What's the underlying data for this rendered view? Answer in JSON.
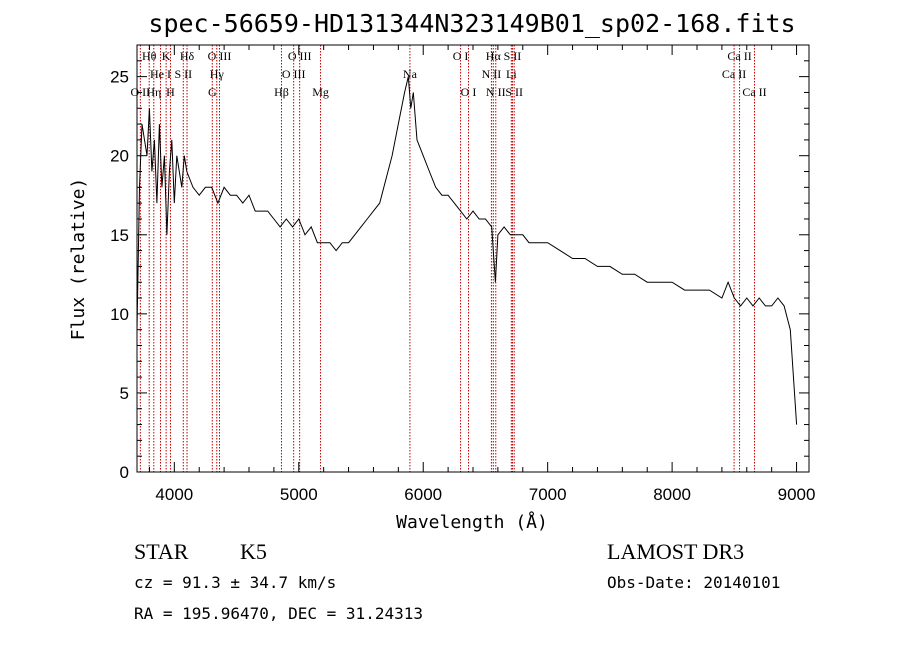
{
  "chart_data": {
    "type": "line",
    "title": "spec-56659-HD131344N323149B01_sp02-168.fits",
    "xlabel": "Wavelength (Å)",
    "ylabel": "Flux (relative)",
    "xlim": [
      3700,
      9100
    ],
    "ylim": [
      0,
      27
    ],
    "xticks": [
      4000,
      5000,
      6000,
      7000,
      8000,
      9000
    ],
    "yticks": [
      0,
      5,
      10,
      15,
      20,
      25
    ],
    "grid": false,
    "series": [
      {
        "color": "#000000",
        "x": [
          3700,
          3720,
          3740,
          3760,
          3780,
          3800,
          3820,
          3840,
          3860,
          3880,
          3900,
          3920,
          3940,
          3960,
          3980,
          4000,
          4020,
          4040,
          4060,
          4080,
          4100,
          4150,
          4200,
          4250,
          4300,
          4350,
          4400,
          4450,
          4500,
          4550,
          4600,
          4650,
          4700,
          4750,
          4800,
          4850,
          4900,
          4950,
          5000,
          5050,
          5100,
          5150,
          5200,
          5250,
          5300,
          5350,
          5400,
          5450,
          5500,
          5550,
          5600,
          5650,
          5700,
          5750,
          5800,
          5850,
          5880,
          5900,
          5920,
          5950,
          6000,
          6050,
          6100,
          6150,
          6200,
          6250,
          6300,
          6350,
          6400,
          6450,
          6500,
          6550,
          6580,
          6600,
          6650,
          6700,
          6750,
          6800,
          6850,
          6900,
          7000,
          7100,
          7200,
          7300,
          7400,
          7500,
          7600,
          7700,
          7800,
          7900,
          8000,
          8100,
          8200,
          8300,
          8400,
          8450,
          8500,
          8550,
          8600,
          8650,
          8700,
          8750,
          8800,
          8850,
          8900,
          8950,
          9000
        ],
        "y": [
          9,
          18,
          22,
          21,
          20,
          23,
          19,
          21,
          17,
          22,
          18,
          20,
          15,
          19,
          21,
          17,
          20,
          19,
          18,
          20,
          19,
          18,
          17.5,
          18,
          18,
          17,
          18,
          17.5,
          17.5,
          17,
          17.5,
          16.5,
          16.5,
          16.5,
          16,
          15.5,
          16,
          15.5,
          16,
          15,
          15.5,
          14.5,
          14.5,
          14.5,
          14,
          14.5,
          14.5,
          15,
          15.5,
          16,
          16.5,
          17,
          18.5,
          20,
          22,
          24,
          25,
          23,
          24,
          21,
          20,
          19,
          18,
          17.5,
          17.5,
          17,
          16.5,
          16,
          16.5,
          16,
          16,
          15.5,
          12,
          15,
          15.5,
          15,
          15,
          15,
          14.5,
          14.5,
          14.5,
          14,
          13.5,
          13.5,
          13,
          13,
          12.5,
          12.5,
          12,
          12,
          12,
          11.5,
          11.5,
          11.5,
          11,
          12,
          11,
          10.5,
          11,
          10.5,
          11,
          10.5,
          10.5,
          11,
          10.5,
          9,
          3
        ]
      }
    ],
    "spectral_lines": [
      {
        "label": "O II",
        "wavelength": 3727,
        "row": 2
      },
      {
        "label": "Hθ",
        "wavelength": 3798,
        "row": 0
      },
      {
        "label": "Hη",
        "wavelength": 3835,
        "row": 2
      },
      {
        "label": "He I",
        "wavelength": 3889,
        "row": 1
      },
      {
        "label": "K",
        "wavelength": 3934,
        "row": 0
      },
      {
        "label": "H",
        "wavelength": 3969,
        "row": 2
      },
      {
        "label": "S II",
        "wavelength": 4072,
        "row": 1
      },
      {
        "label": "Hδ",
        "wavelength": 4102,
        "row": 0
      },
      {
        "label": "G",
        "wavelength": 4305,
        "row": 2
      },
      {
        "label": "Hγ",
        "wavelength": 4341,
        "row": 1
      },
      {
        "label": "O III",
        "wavelength": 4363,
        "row": 0
      },
      {
        "label": "Hβ",
        "wavelength": 4861,
        "row": 2
      },
      {
        "label": "O III",
        "wavelength": 4959,
        "row": 1
      },
      {
        "label": "O III",
        "wavelength": 5007,
        "row": 0
      },
      {
        "label": "Mg",
        "wavelength": 5175,
        "row": 2
      },
      {
        "label": "Na",
        "wavelength": 5893,
        "row": 1
      },
      {
        "label": "O I",
        "wavelength": 6300,
        "row": 0
      },
      {
        "label": "O I",
        "wavelength": 6364,
        "row": 2
      },
      {
        "label": "N II",
        "wavelength": 6548,
        "row": 1
      },
      {
        "label": "Hα",
        "wavelength": 6563,
        "row": 0
      },
      {
        "label": "N II",
        "wavelength": 6583,
        "row": 2
      },
      {
        "label": "Li",
        "wavelength": 6708,
        "row": 1
      },
      {
        "label": "S II",
        "wavelength": 6717,
        "row": 0
      },
      {
        "label": "S II",
        "wavelength": 6731,
        "row": 2
      },
      {
        "label": "Ca II",
        "wavelength": 8498,
        "row": 1
      },
      {
        "label": "Ca II",
        "wavelength": 8542,
        "row": 0
      },
      {
        "label": "Ca II",
        "wavelength": 8662,
        "row": 2
      }
    ],
    "spectral_line_color": "#c00000"
  },
  "info": {
    "object_class": "STAR",
    "subclass": "K5",
    "redshift_line": "cz = 91.3 ± 34.7 km/s",
    "coords_line": "RA = 195.96470, DEC =  31.24313",
    "survey": "LAMOST DR3",
    "obs_date": "Obs-Date: 20140101"
  }
}
